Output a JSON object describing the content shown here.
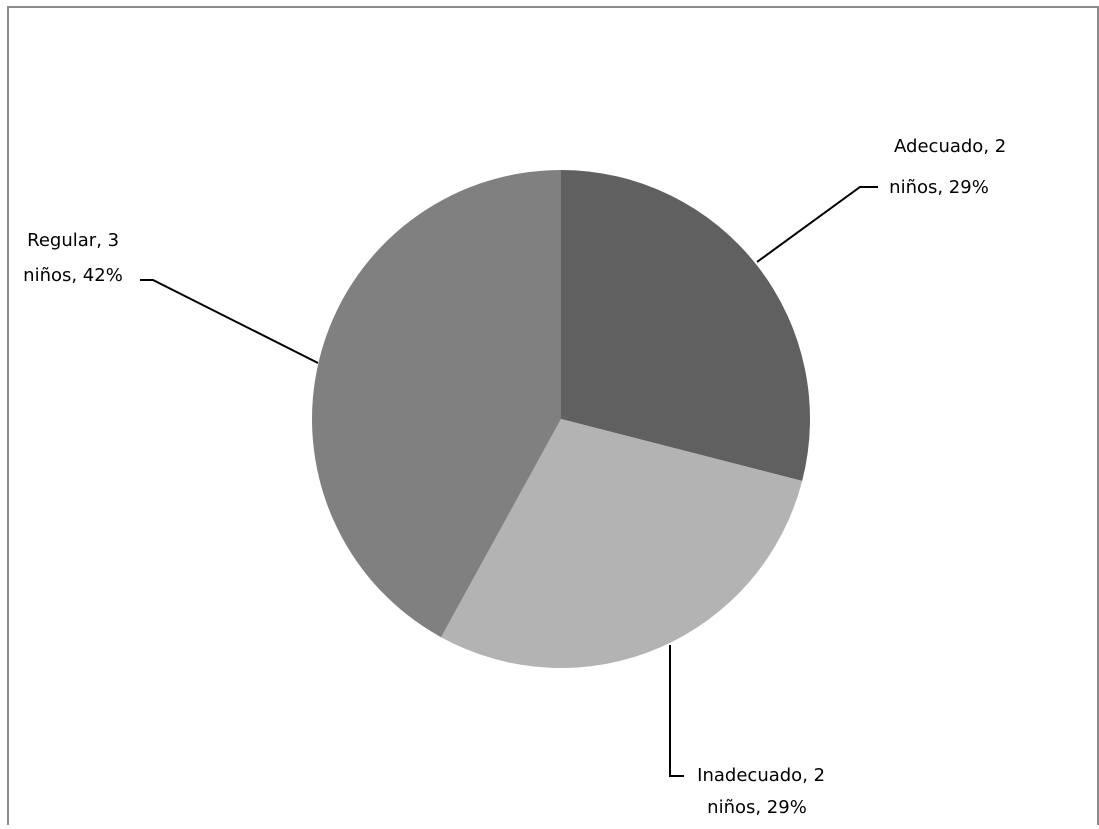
{
  "chart_data": {
    "type": "pie",
    "title": "",
    "start_angle_deg": 0,
    "direction": "clockwise",
    "legend": "none",
    "slices": [
      {
        "category": "Adecuado",
        "count": 2,
        "percent": 29,
        "label_line1": "Adecuado, 2",
        "label_line2": "niños, 29%",
        "color": "#606060"
      },
      {
        "category": "Inadecuado",
        "count": 2,
        "percent": 29,
        "label_line1": "Inadecuado, 2",
        "label_line2": "niños, 29%",
        "color": "#b3b3b3"
      },
      {
        "category": "Regular",
        "count": 3,
        "percent": 42,
        "label_line1": "Regular, 3",
        "label_line2": "niños, 42%",
        "color": "#808080"
      }
    ]
  },
  "colors": {
    "frame_border": "#8c8c8c",
    "leader_line": "#000000",
    "background": "#ffffff"
  }
}
